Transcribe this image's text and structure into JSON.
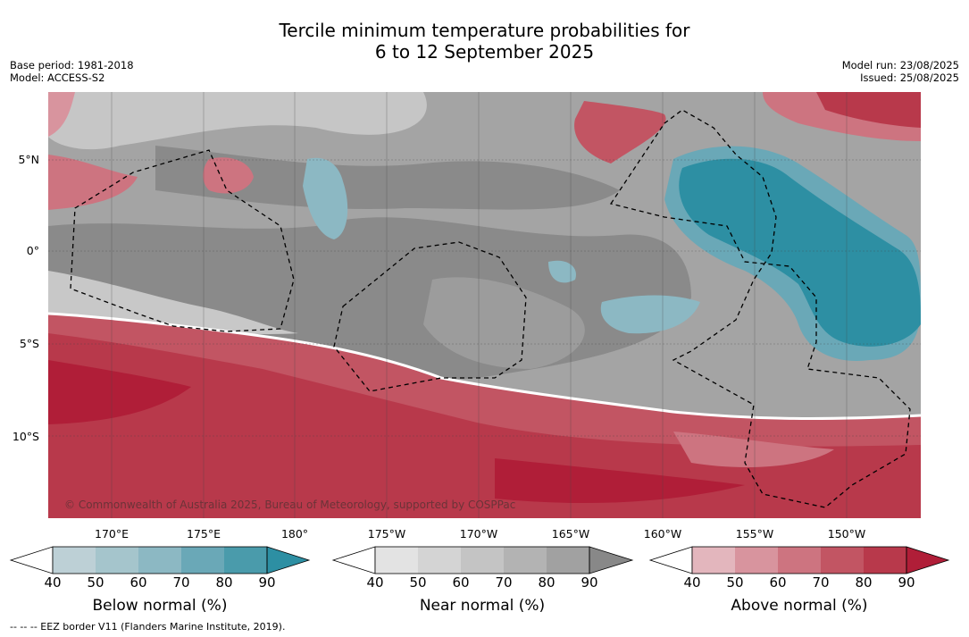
{
  "header": {
    "title_line1": "Tercile minimum temperature probabilities for",
    "title_line2": "6 to 12 September 2025",
    "base_period": "Base period: 1981-2018",
    "model": "Model: ACCESS-S2",
    "model_run": "Model run: 23/08/2025",
    "issued": "Issued: 25/08/2025"
  },
  "map": {
    "lat_labels": [
      "5°N",
      "0°",
      "5°S",
      "10°S"
    ],
    "lon_labels": [
      "170°E",
      "175°E",
      "180°",
      "175°W",
      "170°W",
      "165°W",
      "160°W",
      "155°W",
      "150°W"
    ],
    "copyright": "© Commonwealth of Australia 2025, Bureau of Meteorology, supported by COSPPac"
  },
  "legends": [
    {
      "label": "Below normal (%)",
      "ticks": [
        "40",
        "50",
        "60",
        "70",
        "80",
        "90"
      ],
      "colors": [
        "#bdd0d6",
        "#a5c5cc",
        "#8cb8c3",
        "#6aa8b7",
        "#4a9bab",
        "#2d8fa3"
      ]
    },
    {
      "label": "Near normal (%)",
      "ticks": [
        "40",
        "50",
        "60",
        "70",
        "80",
        "90"
      ],
      "colors": [
        "#e3e3e3",
        "#d4d4d4",
        "#c4c4c4",
        "#b3b3b3",
        "#a1a1a1",
        "#888888"
      ]
    },
    {
      "label": "Above normal (%)",
      "ticks": [
        "40",
        "50",
        "60",
        "70",
        "80",
        "90"
      ],
      "colors": [
        "#e3b6bd",
        "#d8949e",
        "#cd7480",
        "#c25563",
        "#b8394b",
        "#b01e38"
      ]
    }
  ],
  "footnote": "-- -- -- EEZ border V11 (Flanders Marine Institute, 2019)."
}
